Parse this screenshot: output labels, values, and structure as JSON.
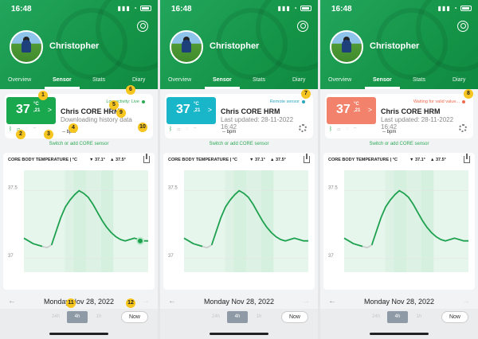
{
  "status_bar": {
    "time": "16:48"
  },
  "user": {
    "name": "Christopher"
  },
  "tabs": [
    "Overview",
    "Sensor",
    "Stats",
    "Diary"
  ],
  "screens": [
    {
      "temp": "37",
      "temp_unit": "°C",
      "temp_dec": ",21",
      "status_text": "Low activity: Live",
      "status_color": "#2eaa55",
      "device_name": "Chris CORE HRM",
      "sub1": "Downloading history data",
      "sub2": "",
      "bpm": "-- bpm",
      "switch_link": "Switch or add CORE sensor",
      "chart": {
        "title": "CORE BODY TEMPERATURE | °C",
        "min": "▼ 37.1°",
        "max": "▲ 37.5°",
        "y_labels": [
          "37.5",
          "37"
        ]
      },
      "date": "Monday Nov 28, 2022",
      "ranges": [
        "24h",
        "4h",
        "1h"
      ],
      "now": "Now",
      "badges": [
        "1",
        "2",
        "3",
        "4",
        "5",
        "6",
        "9",
        "10",
        "11",
        "12"
      ]
    },
    {
      "temp": "37",
      "temp_unit": "°C",
      "temp_dec": ",21",
      "status_text": "Remote sensor",
      "status_color": "#2aa6c0",
      "device_name": "Chris CORE HRM",
      "sub1": "Last updated: 28-11-2022",
      "sub2": "16:42",
      "bpm": "-- bpm",
      "switch_link": "Switch or add CORE sensor",
      "chart": {
        "title": "CORE BODY TEMPERATURE | °C",
        "min": "▼ 37.1°",
        "max": "▲ 37.5°",
        "y_labels": [
          "37.5",
          "37"
        ]
      },
      "date": "Monday Nov 28, 2022",
      "ranges": [
        "24h",
        "4h",
        "1h"
      ],
      "now": "Now",
      "badges": [
        "7"
      ]
    },
    {
      "temp": "37",
      "temp_unit": "°C",
      "temp_dec": ",21",
      "status_text": "Waiting for valid value...",
      "status_color": "#ef6a50",
      "device_name": "Chris CORE HRM",
      "sub1": "Last updated: 28-11-2022",
      "sub2": "16:42",
      "bpm": "-- bpm",
      "switch_link": "Switch or add CORE sensor",
      "chart": {
        "title": "CORE BODY TEMPERATURE | °C",
        "min": "▼ 37.1°",
        "max": "▲ 37.5°",
        "y_labels": [
          "37.5",
          "37"
        ]
      },
      "date": "Monday Nov 28, 2022",
      "ranges": [
        "24h",
        "4h",
        "1h"
      ],
      "now": "Now",
      "badges": [
        "8"
      ]
    }
  ],
  "chart_data": {
    "type": "line",
    "title": "CORE BODY TEMPERATURE | °C",
    "y_ticks": [
      37.5,
      37
    ],
    "y_range": [
      36.9,
      37.65
    ],
    "x": [
      0,
      1,
      2,
      3,
      4,
      5,
      6,
      7,
      8,
      9,
      10,
      11,
      12,
      13,
      14,
      15,
      16,
      17,
      18,
      19,
      20,
      21,
      22,
      23,
      24,
      25,
      26,
      27
    ],
    "values": [
      37.15,
      37.13,
      37.11,
      37.1,
      37.09,
      37.08,
      37.1,
      37.2,
      37.3,
      37.38,
      37.43,
      37.47,
      37.5,
      37.48,
      37.45,
      37.4,
      37.34,
      37.28,
      37.23,
      37.19,
      37.16,
      37.14,
      37.13,
      37.14,
      37.15,
      37.14,
      37.13,
      37.13
    ],
    "colors": {
      "line": "#1ea14f",
      "gap": "#cccccc",
      "band": "#e6f6ec",
      "band_dark": "#d3efdd"
    }
  }
}
